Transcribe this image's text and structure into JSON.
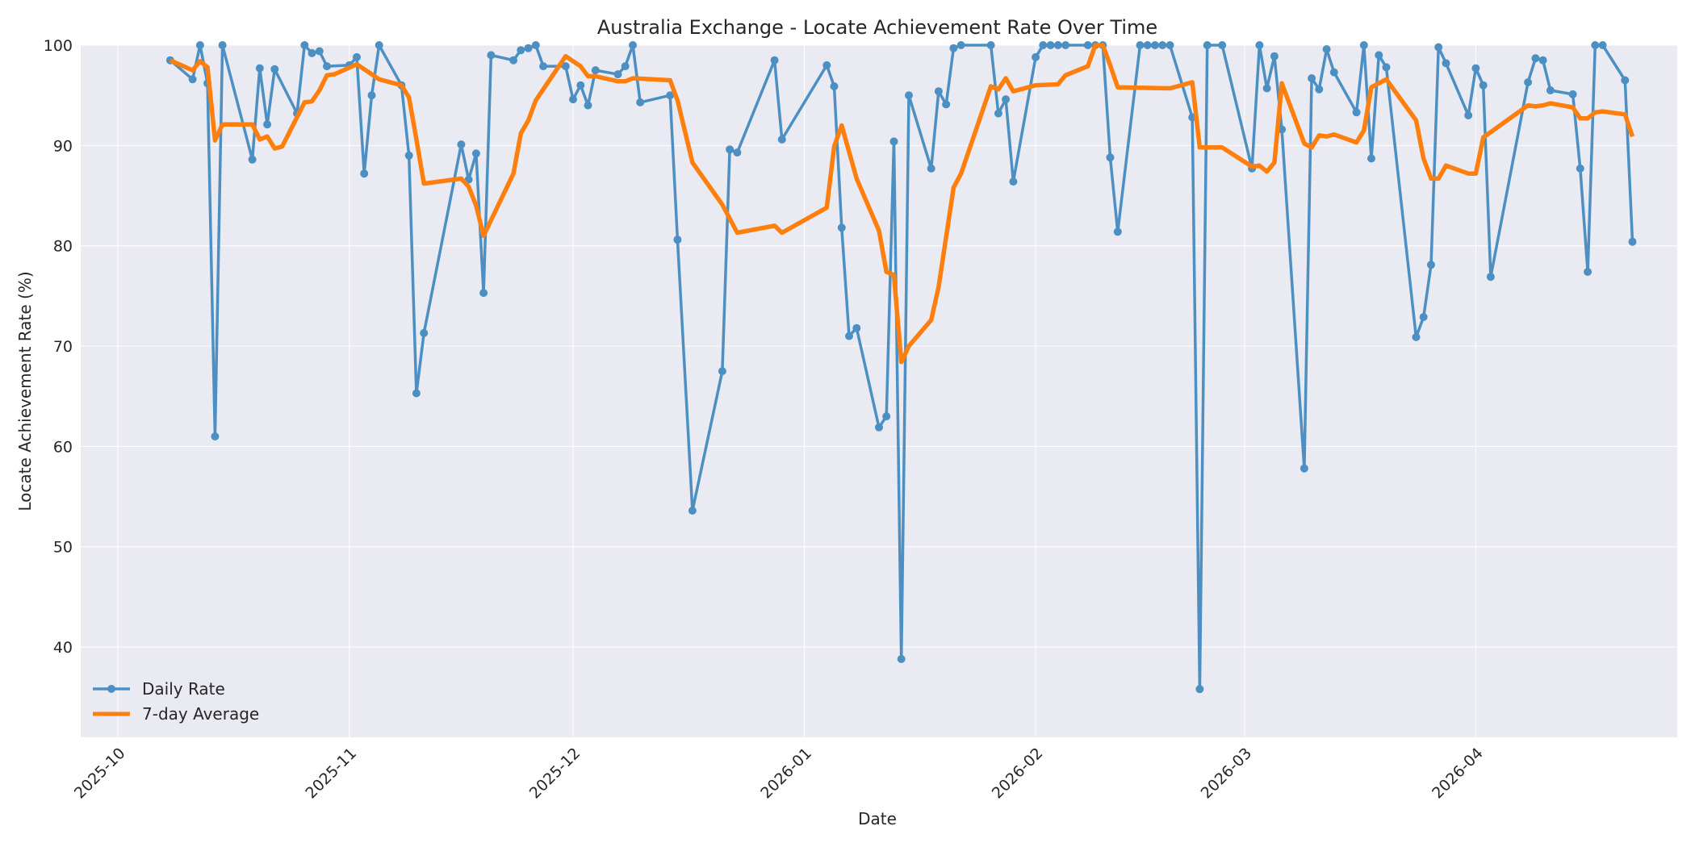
{
  "chart_data": {
    "type": "line",
    "title": "Australia Exchange - Locate Achievement Rate Over Time",
    "xlabel": "Date",
    "ylabel": "Locate Achievement Rate (%)",
    "x_range": [
      "2025-09-26",
      "2026-04-28"
    ],
    "ylim": [
      31,
      100
    ],
    "x_ticks": [
      {
        "date": "2025-10-01",
        "label": "2025-10"
      },
      {
        "date": "2025-11-01",
        "label": "2025-11"
      },
      {
        "date": "2025-12-01",
        "label": "2025-12"
      },
      {
        "date": "2026-01-01",
        "label": "2026-01"
      },
      {
        "date": "2026-02-01",
        "label": "2026-02"
      },
      {
        "date": "2026-03-01",
        "label": "2026-03"
      },
      {
        "date": "2026-04-01",
        "label": "2026-04"
      }
    ],
    "y_ticks": [
      40,
      50,
      60,
      70,
      80,
      90,
      100
    ],
    "grid": true,
    "legend_position": "bottom-left",
    "colors": {
      "daily": "#4c8fc2",
      "average": "#ff7f0e",
      "plot_bg": "#eaeaf2",
      "grid": "#ffffff"
    },
    "series": [
      {
        "name": "Daily Rate",
        "marker": "circle",
        "points": [
          [
            "2025-10-08",
            98.5
          ],
          [
            "2025-10-11",
            96.6
          ],
          [
            "2025-10-12",
            100
          ],
          [
            "2025-10-13",
            96.2
          ],
          [
            "2025-10-14",
            61
          ],
          [
            "2025-10-15",
            100
          ],
          [
            "2025-10-19",
            88.6
          ],
          [
            "2025-10-20",
            97.7
          ],
          [
            "2025-10-21",
            92.1
          ],
          [
            "2025-10-22",
            97.6
          ],
          [
            "2025-10-25",
            93.2
          ],
          [
            "2025-10-26",
            100
          ],
          [
            "2025-10-27",
            99.2
          ],
          [
            "2025-10-28",
            99.4
          ],
          [
            "2025-10-29",
            97.9
          ],
          [
            "2025-11-01",
            98
          ],
          [
            "2025-11-02",
            98.8
          ],
          [
            "2025-11-03",
            87.2
          ],
          [
            "2025-11-04",
            95
          ],
          [
            "2025-11-05",
            100
          ],
          [
            "2025-11-08",
            96
          ],
          [
            "2025-11-09",
            89
          ],
          [
            "2025-11-10",
            65.3
          ],
          [
            "2025-11-11",
            71.3
          ],
          [
            "2025-11-16",
            90.1
          ],
          [
            "2025-11-17",
            86.6
          ],
          [
            "2025-11-18",
            89.2
          ],
          [
            "2025-11-19",
            75.3
          ],
          [
            "2025-11-20",
            99
          ],
          [
            "2025-11-23",
            98.5
          ],
          [
            "2025-11-24",
            99.5
          ],
          [
            "2025-11-25",
            99.7
          ],
          [
            "2025-11-26",
            100
          ],
          [
            "2025-11-27",
            97.9
          ],
          [
            "2025-11-30",
            97.9
          ],
          [
            "2025-12-01",
            94.6
          ],
          [
            "2025-12-02",
            96
          ],
          [
            "2025-12-03",
            94
          ],
          [
            "2025-12-04",
            97.5
          ],
          [
            "2025-12-07",
            97.1
          ],
          [
            "2025-12-08",
            97.9
          ],
          [
            "2025-12-09",
            100
          ],
          [
            "2025-12-10",
            94.3
          ],
          [
            "2025-12-14",
            95
          ],
          [
            "2025-12-15",
            80.6
          ],
          [
            "2025-12-17",
            53.6
          ],
          [
            "2025-12-21",
            67.5
          ],
          [
            "2025-12-22",
            89.6
          ],
          [
            "2025-12-23",
            89.3
          ],
          [
            "2025-12-28",
            98.5
          ],
          [
            "2025-12-29",
            90.6
          ],
          [
            "2026-01-04",
            98
          ],
          [
            "2026-01-05",
            95.9
          ],
          [
            "2026-01-06",
            81.8
          ],
          [
            "2026-01-07",
            71
          ],
          [
            "2026-01-08",
            71.8
          ],
          [
            "2026-01-11",
            61.9
          ],
          [
            "2026-01-12",
            63
          ],
          [
            "2026-01-13",
            90.4
          ],
          [
            "2026-01-14",
            38.8
          ],
          [
            "2026-01-15",
            95
          ],
          [
            "2026-01-18",
            87.7
          ],
          [
            "2026-01-19",
            95.4
          ],
          [
            "2026-01-20",
            94.1
          ],
          [
            "2026-01-21",
            99.7
          ],
          [
            "2026-01-22",
            100
          ],
          [
            "2026-01-26",
            100
          ],
          [
            "2026-01-27",
            93.2
          ],
          [
            "2026-01-28",
            94.6
          ],
          [
            "2026-01-29",
            86.4
          ],
          [
            "2026-02-01",
            98.8
          ],
          [
            "2026-02-02",
            100
          ],
          [
            "2026-02-03",
            100
          ],
          [
            "2026-02-04",
            100
          ],
          [
            "2026-02-05",
            100
          ],
          [
            "2026-02-08",
            100
          ],
          [
            "2026-02-09",
            100
          ],
          [
            "2026-02-10",
            100
          ],
          [
            "2026-02-11",
            88.8
          ],
          [
            "2026-02-12",
            81.4
          ],
          [
            "2026-02-15",
            100
          ],
          [
            "2026-02-16",
            100
          ],
          [
            "2026-02-17",
            100
          ],
          [
            "2026-02-18",
            100
          ],
          [
            "2026-02-19",
            100
          ],
          [
            "2026-02-22",
            92.8
          ],
          [
            "2026-02-23",
            35.8
          ],
          [
            "2026-02-24",
            100
          ],
          [
            "2026-02-26",
            100
          ],
          [
            "2026-03-02",
            87.7
          ],
          [
            "2026-03-03",
            100
          ],
          [
            "2026-03-04",
            95.7
          ],
          [
            "2026-03-05",
            98.9
          ],
          [
            "2026-03-06",
            91.6
          ],
          [
            "2026-03-09",
            57.8
          ],
          [
            "2026-03-10",
            96.7
          ],
          [
            "2026-03-11",
            95.6
          ],
          [
            "2026-03-12",
            99.6
          ],
          [
            "2026-03-13",
            97.3
          ],
          [
            "2026-03-16",
            93.3
          ],
          [
            "2026-03-17",
            100
          ],
          [
            "2026-03-18",
            88.7
          ],
          [
            "2026-03-19",
            99
          ],
          [
            "2026-03-20",
            97.8
          ],
          [
            "2026-03-24",
            70.9
          ],
          [
            "2026-03-25",
            72.9
          ],
          [
            "2026-03-26",
            78.1
          ],
          [
            "2026-03-27",
            99.8
          ],
          [
            "2026-03-28",
            98.2
          ],
          [
            "2026-03-31",
            93
          ],
          [
            "2026-04-01",
            97.7
          ],
          [
            "2026-04-02",
            96
          ],
          [
            "2026-04-03",
            76.9
          ],
          [
            "2026-04-08",
            96.3
          ],
          [
            "2026-04-09",
            98.7
          ],
          [
            "2026-04-10",
            98.5
          ],
          [
            "2026-04-11",
            95.5
          ],
          [
            "2026-04-14",
            95.1
          ],
          [
            "2026-04-15",
            87.7
          ],
          [
            "2026-04-16",
            77.4
          ],
          [
            "2026-04-17",
            100
          ],
          [
            "2026-04-18",
            100
          ],
          [
            "2026-04-21",
            96.5
          ],
          [
            "2026-04-22",
            80.4
          ]
        ]
      },
      {
        "name": "7-day Average",
        "marker": "none",
        "points": [
          [
            "2025-10-08",
            98.5
          ],
          [
            "2025-10-11",
            97.5
          ],
          [
            "2025-10-12",
            98.4
          ],
          [
            "2025-10-13",
            97.8
          ],
          [
            "2025-10-14",
            90.5
          ],
          [
            "2025-10-15",
            92.1
          ],
          [
            "2025-10-19",
            92.1
          ],
          [
            "2025-10-20",
            90.6
          ],
          [
            "2025-10-21",
            90.9
          ],
          [
            "2025-10-22",
            89.7
          ],
          [
            "2025-10-23",
            89.9
          ],
          [
            "2025-10-26",
            94.3
          ],
          [
            "2025-10-27",
            94.4
          ],
          [
            "2025-10-28",
            95.5
          ],
          [
            "2025-10-29",
            97
          ],
          [
            "2025-10-30",
            97.1
          ],
          [
            "2025-11-02",
            98.1
          ],
          [
            "2025-11-03",
            97.6
          ],
          [
            "2025-11-05",
            96.6
          ],
          [
            "2025-11-08",
            96
          ],
          [
            "2025-11-09",
            94.8
          ],
          [
            "2025-11-10",
            90.6
          ],
          [
            "2025-11-11",
            86.2
          ],
          [
            "2025-11-16",
            86.7
          ],
          [
            "2025-11-17",
            85.9
          ],
          [
            "2025-11-18",
            84
          ],
          [
            "2025-11-19",
            81
          ],
          [
            "2025-11-23",
            87.2
          ],
          [
            "2025-11-24",
            91.2
          ],
          [
            "2025-11-25",
            92.5
          ],
          [
            "2025-11-26",
            94.5
          ],
          [
            "2025-11-30",
            98.9
          ],
          [
            "2025-12-01",
            98.4
          ],
          [
            "2025-12-02",
            97.9
          ],
          [
            "2025-12-03",
            96.9
          ],
          [
            "2025-12-04",
            96.9
          ],
          [
            "2025-12-07",
            96.4
          ],
          [
            "2025-12-08",
            96.4
          ],
          [
            "2025-12-09",
            96.7
          ],
          [
            "2025-12-14",
            96.5
          ],
          [
            "2025-12-15",
            94.5
          ],
          [
            "2025-12-17",
            88.3
          ],
          [
            "2025-12-21",
            84.1
          ],
          [
            "2025-12-23",
            81.3
          ],
          [
            "2025-12-28",
            82
          ],
          [
            "2025-12-29",
            81.3
          ],
          [
            "2026-01-04",
            83.8
          ],
          [
            "2026-01-05",
            89.9
          ],
          [
            "2026-01-06",
            92
          ],
          [
            "2026-01-08",
            86.7
          ],
          [
            "2026-01-11",
            81.5
          ],
          [
            "2026-01-12",
            77.4
          ],
          [
            "2026-01-13",
            77.1
          ],
          [
            "2026-01-14",
            68.4
          ],
          [
            "2026-01-15",
            70
          ],
          [
            "2026-01-18",
            72.6
          ],
          [
            "2026-01-19",
            75.9
          ],
          [
            "2026-01-21",
            85.8
          ],
          [
            "2026-01-22",
            87.2
          ],
          [
            "2026-01-26",
            95.9
          ],
          [
            "2026-01-27",
            95.6
          ],
          [
            "2026-01-28",
            96.7
          ],
          [
            "2026-01-29",
            95.4
          ],
          [
            "2026-02-01",
            96
          ],
          [
            "2026-02-04",
            96.1
          ],
          [
            "2026-02-05",
            97
          ],
          [
            "2026-02-08",
            97.9
          ],
          [
            "2026-02-09",
            100
          ],
          [
            "2026-02-10",
            100
          ],
          [
            "2026-02-11",
            98
          ],
          [
            "2026-02-12",
            95.8
          ],
          [
            "2026-02-19",
            95.7
          ],
          [
            "2026-02-22",
            96.3
          ],
          [
            "2026-02-23",
            89.8
          ],
          [
            "2026-02-26",
            89.8
          ],
          [
            "2026-03-02",
            87.9
          ],
          [
            "2026-03-03",
            88
          ],
          [
            "2026-03-04",
            87.4
          ],
          [
            "2026-03-05",
            88.3
          ],
          [
            "2026-03-06",
            96.2
          ],
          [
            "2026-03-09",
            90.2
          ],
          [
            "2026-03-10",
            89.8
          ],
          [
            "2026-03-11",
            91
          ],
          [
            "2026-03-12",
            90.9
          ],
          [
            "2026-03-13",
            91.1
          ],
          [
            "2026-03-16",
            90.3
          ],
          [
            "2026-03-17",
            91.5
          ],
          [
            "2026-03-18",
            95.8
          ],
          [
            "2026-03-20",
            96.6
          ],
          [
            "2026-03-24",
            92.5
          ],
          [
            "2026-03-25",
            88.7
          ],
          [
            "2026-03-26",
            86.7
          ],
          [
            "2026-03-27",
            86.7
          ],
          [
            "2026-03-28",
            88
          ],
          [
            "2026-03-31",
            87.2
          ],
          [
            "2026-04-01",
            87.2
          ],
          [
            "2026-04-02",
            90.8
          ],
          [
            "2026-04-08",
            94
          ],
          [
            "2026-04-09",
            93.9
          ],
          [
            "2026-04-10",
            94
          ],
          [
            "2026-04-11",
            94.2
          ],
          [
            "2026-04-14",
            93.8
          ],
          [
            "2026-04-15",
            92.7
          ],
          [
            "2026-04-16",
            92.7
          ],
          [
            "2026-04-17",
            93.3
          ],
          [
            "2026-04-18",
            93.4
          ],
          [
            "2026-04-21",
            93.1
          ],
          [
            "2026-04-22",
            90.9
          ]
        ]
      }
    ]
  }
}
